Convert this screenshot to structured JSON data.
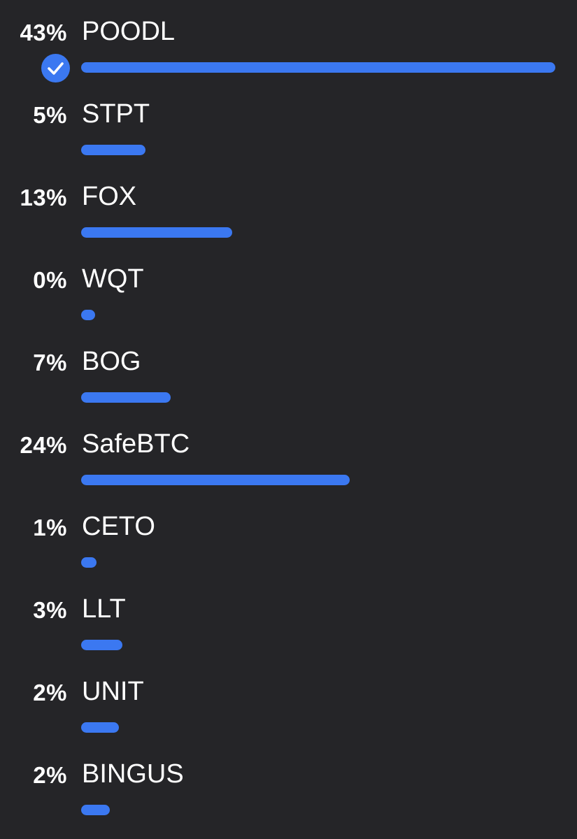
{
  "poll": {
    "options": [
      {
        "label": "POODL",
        "percent_text": "43%",
        "fraction": 1.0,
        "selected": true
      },
      {
        "label": "STPT",
        "percent_text": "5%",
        "fraction": 0.135,
        "selected": false
      },
      {
        "label": "FOX",
        "percent_text": "13%",
        "fraction": 0.318,
        "selected": false
      },
      {
        "label": "WQT",
        "percent_text": "0%",
        "fraction": 0.0,
        "selected": false
      },
      {
        "label": "BOG",
        "percent_text": "7%",
        "fraction": 0.189,
        "selected": false
      },
      {
        "label": "SafeBTC",
        "percent_text": "24%",
        "fraction": 0.567,
        "selected": false
      },
      {
        "label": "CETO",
        "percent_text": "1%",
        "fraction": 0.033,
        "selected": false
      },
      {
        "label": "LLT",
        "percent_text": "3%",
        "fraction": 0.087,
        "selected": false
      },
      {
        "label": "UNIT",
        "percent_text": "2%",
        "fraction": 0.079,
        "selected": false
      },
      {
        "label": "BINGUS",
        "percent_text": "2%",
        "fraction": 0.06,
        "selected": false
      }
    ]
  },
  "colors": {
    "background": "#252528",
    "bar": "#3b78f1",
    "text": "#ffffff"
  },
  "icons": {
    "selected": "checkmark-circle-icon"
  }
}
